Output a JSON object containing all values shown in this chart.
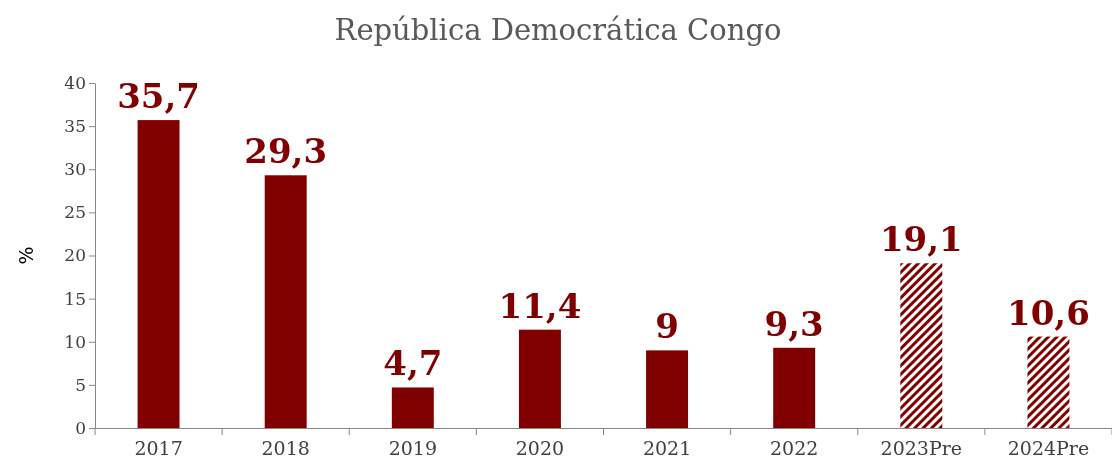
{
  "chart_data": {
    "type": "bar",
    "title": "República Democrática Congo",
    "ylabel": "%",
    "categories": [
      "2017",
      "2018",
      "2019",
      "2020",
      "2021",
      "2022",
      "2023Pre",
      "2024Pre"
    ],
    "series": [
      {
        "color": "#800000",
        "values": [
          35.7,
          29.3,
          4.7,
          11.4,
          9,
          9.3,
          null,
          null
        ],
        "value_labels": [
          "35,7",
          "29,3",
          "4,7",
          "11,4",
          "9",
          "9,3",
          null,
          null
        ]
      },
      {
        "color": "#800000",
        "values": [
          null,
          null,
          null,
          null,
          null,
          null,
          19.1,
          10.6
        ],
        "value_labels": [
          null,
          null,
          null,
          null,
          null,
          null,
          "19,1",
          "10,6"
        ]
      }
    ],
    "ylim": [
      0,
      40
    ],
    "yticks": [
      0,
      5,
      10,
      15,
      20,
      25,
      30,
      35,
      40
    ]
  }
}
